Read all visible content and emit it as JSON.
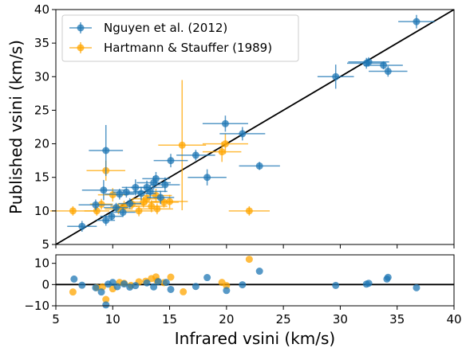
{
  "chart_data": {
    "type": "scatter",
    "xlabel": "Infrared vsini (km/s)",
    "ylabel": "Published vsini (km/s)",
    "xlim": [
      5,
      40
    ],
    "ylim_main": [
      5,
      40
    ],
    "ylim_resid": [
      -10,
      14
    ],
    "x_ticks": [
      5,
      10,
      15,
      20,
      25,
      30,
      35,
      40
    ],
    "y_ticks_main": [
      5,
      10,
      15,
      20,
      25,
      30,
      35,
      40
    ],
    "y_ticks_resid": [
      -10,
      0,
      10
    ],
    "one_to_one_line": true,
    "legend_position": "top-left",
    "series": [
      {
        "name": "Nguyen et al. (2012)",
        "color": "#1f77b4",
        "points": [
          {
            "x": 7.3,
            "y": 7.7,
            "xerr": 1.3,
            "yerr": 0.8
          },
          {
            "x": 8.5,
            "y": 10.9,
            "xerr": 1.5,
            "yerr": 0.8
          },
          {
            "x": 9.2,
            "y": 13.1,
            "xerr": 1.9,
            "yerr": 1.5
          },
          {
            "x": 9.4,
            "y": 19.0,
            "xerr": 1.5,
            "yerr": 3.8
          },
          {
            "x": 9.4,
            "y": 8.6,
            "xerr": 0.8,
            "yerr": 0.8
          },
          {
            "x": 9.9,
            "y": 9.2,
            "xerr": 1.0,
            "yerr": 0.6
          },
          {
            "x": 10.3,
            "y": 10.5,
            "xerr": 1.1,
            "yerr": 0.7
          },
          {
            "x": 10.6,
            "y": 12.5,
            "xerr": 1.3,
            "yerr": 0.8
          },
          {
            "x": 10.9,
            "y": 9.8,
            "xerr": 1.1,
            "yerr": 0.7
          },
          {
            "x": 11.2,
            "y": 12.8,
            "xerr": 1.2,
            "yerr": 0.8
          },
          {
            "x": 11.5,
            "y": 11.1,
            "xerr": 1.0,
            "yerr": 0.8
          },
          {
            "x": 12.0,
            "y": 13.5,
            "xerr": 1.2,
            "yerr": 1.2
          },
          {
            "x": 12.5,
            "y": 12.6,
            "xerr": 1.3,
            "yerr": 1.0
          },
          {
            "x": 13.0,
            "y": 13.5,
            "xerr": 1.4,
            "yerr": 1.0
          },
          {
            "x": 13.3,
            "y": 12.9,
            "xerr": 1.5,
            "yerr": 1.0
          },
          {
            "x": 13.6,
            "y": 14.2,
            "xerr": 1.5,
            "yerr": 1.0
          },
          {
            "x": 13.8,
            "y": 14.8,
            "xerr": 1.2,
            "yerr": 1.0
          },
          {
            "x": 14.2,
            "y": 12.0,
            "xerr": 1.2,
            "yerr": 1.0
          },
          {
            "x": 14.6,
            "y": 13.9,
            "xerr": 1.3,
            "yerr": 1.1
          },
          {
            "x": 15.1,
            "y": 17.5,
            "xerr": 1.5,
            "yerr": 1.0
          },
          {
            "x": 17.3,
            "y": 18.3,
            "xerr": 1.7,
            "yerr": 0.8
          },
          {
            "x": 18.3,
            "y": 15.0,
            "xerr": 1.7,
            "yerr": 1.2
          },
          {
            "x": 19.9,
            "y": 23.0,
            "xerr": 2.0,
            "yerr": 1.2
          },
          {
            "x": 21.4,
            "y": 21.5,
            "xerr": 2.0,
            "yerr": 1.0
          },
          {
            "x": 22.9,
            "y": 16.7,
            "xerr": 1.8,
            "yerr": 0.6
          },
          {
            "x": 29.6,
            "y": 30.0,
            "xerr": 1.6,
            "yerr": 1.8
          },
          {
            "x": 32.3,
            "y": 32.0,
            "xerr": 1.7,
            "yerr": 0.8
          },
          {
            "x": 32.5,
            "y": 32.2,
            "xerr": 1.8,
            "yerr": 0.7
          },
          {
            "x": 33.8,
            "y": 31.7,
            "xerr": 1.7,
            "yerr": 0.6
          },
          {
            "x": 34.2,
            "y": 30.8,
            "xerr": 1.7,
            "yerr": 0.8
          },
          {
            "x": 36.7,
            "y": 38.2,
            "xerr": 1.6,
            "yerr": 1.0
          }
        ],
        "residuals": [
          {
            "x": 6.6,
            "y": 2.6
          },
          {
            "x": 7.3,
            "y": -0.3
          },
          {
            "x": 8.5,
            "y": -1.5
          },
          {
            "x": 9.0,
            "y": -3.5
          },
          {
            "x": 9.4,
            "y": -9.6
          },
          {
            "x": 9.6,
            "y": 0.2
          },
          {
            "x": 10.0,
            "y": 1.0
          },
          {
            "x": 10.4,
            "y": -1.0
          },
          {
            "x": 11.0,
            "y": 0.3
          },
          {
            "x": 11.5,
            "y": -1.2
          },
          {
            "x": 12.0,
            "y": -0.5
          },
          {
            "x": 13.0,
            "y": 0.8
          },
          {
            "x": 13.6,
            "y": -1.1
          },
          {
            "x": 14.0,
            "y": 1.4
          },
          {
            "x": 14.7,
            "y": 1.0
          },
          {
            "x": 15.1,
            "y": -2.3
          },
          {
            "x": 17.3,
            "y": -0.9
          },
          {
            "x": 18.3,
            "y": 3.3
          },
          {
            "x": 20.0,
            "y": -2.8
          },
          {
            "x": 21.4,
            "y": -0.1
          },
          {
            "x": 22.9,
            "y": 6.3
          },
          {
            "x": 29.6,
            "y": -0.4
          },
          {
            "x": 32.3,
            "y": 0.2
          },
          {
            "x": 32.5,
            "y": 0.6
          },
          {
            "x": 34.1,
            "y": 2.6
          },
          {
            "x": 34.2,
            "y": 3.4
          },
          {
            "x": 36.7,
            "y": -1.5
          }
        ]
      },
      {
        "name": "Hartmann & Stauffer (1989)",
        "color": "#ffa500",
        "points": [
          {
            "x": 6.5,
            "y": 10.0,
            "xerr": 2.0,
            "yerr": 0.7
          },
          {
            "x": 8.6,
            "y": 10.0,
            "xerr": 1.1,
            "yerr": 0.7
          },
          {
            "x": 9.0,
            "y": 11.0,
            "xerr": 1.0,
            "yerr": 0.8
          },
          {
            "x": 9.4,
            "y": 16.0,
            "xerr": 1.7,
            "yerr": 1.5
          },
          {
            "x": 10.0,
            "y": 12.4,
            "xerr": 1.3,
            "yerr": 1.0
          },
          {
            "x": 10.5,
            "y": 10.3,
            "xerr": 1.2,
            "yerr": 0.8
          },
          {
            "x": 11.0,
            "y": 10.7,
            "xerr": 1.2,
            "yerr": 0.8
          },
          {
            "x": 11.7,
            "y": 11.0,
            "xerr": 1.3,
            "yerr": 0.8
          },
          {
            "x": 12.3,
            "y": 10.0,
            "xerr": 1.3,
            "yerr": 0.8
          },
          {
            "x": 12.7,
            "y": 11.3,
            "xerr": 1.3,
            "yerr": 0.8
          },
          {
            "x": 13.0,
            "y": 11.8,
            "xerr": 1.3,
            "yerr": 0.8
          },
          {
            "x": 13.4,
            "y": 10.7,
            "xerr": 1.4,
            "yerr": 0.9
          },
          {
            "x": 13.8,
            "y": 12.3,
            "xerr": 1.4,
            "yerr": 1.0
          },
          {
            "x": 13.9,
            "y": 10.3,
            "xerr": 1.4,
            "yerr": 0.8
          },
          {
            "x": 14.5,
            "y": 11.3,
            "xerr": 1.3,
            "yerr": 0.8
          },
          {
            "x": 15.0,
            "y": 11.4,
            "xerr": 1.6,
            "yerr": 1.0
          },
          {
            "x": 16.1,
            "y": 19.8,
            "xerr": 2.1,
            "yerr": 9.7
          },
          {
            "x": 19.6,
            "y": 18.8,
            "xerr": 1.7,
            "yerr": 1.5
          },
          {
            "x": 19.9,
            "y": 20.0,
            "xerr": 2.0,
            "yerr": 1.5
          },
          {
            "x": 22.0,
            "y": 10.0,
            "xerr": 1.8,
            "yerr": 0.7
          }
        ],
        "residuals": [
          {
            "x": 6.5,
            "y": -3.5
          },
          {
            "x": 8.6,
            "y": -1.4
          },
          {
            "x": 9.1,
            "y": -1.1
          },
          {
            "x": 9.4,
            "y": -7.0
          },
          {
            "x": 10.0,
            "y": -2.0
          },
          {
            "x": 10.6,
            "y": 1.0
          },
          {
            "x": 11.0,
            "y": 0.6
          },
          {
            "x": 11.6,
            "y": -0.4
          },
          {
            "x": 12.3,
            "y": 1.3
          },
          {
            "x": 12.9,
            "y": 1.6
          },
          {
            "x": 13.4,
            "y": 2.8
          },
          {
            "x": 13.8,
            "y": 3.6
          },
          {
            "x": 13.9,
            "y": 1.7
          },
          {
            "x": 14.5,
            "y": 0.9
          },
          {
            "x": 15.1,
            "y": 3.5
          },
          {
            "x": 16.2,
            "y": -3.4
          },
          {
            "x": 19.6,
            "y": 1.0
          },
          {
            "x": 20.0,
            "y": -0.5
          },
          {
            "x": 22.0,
            "y": 11.9
          }
        ]
      }
    ]
  }
}
